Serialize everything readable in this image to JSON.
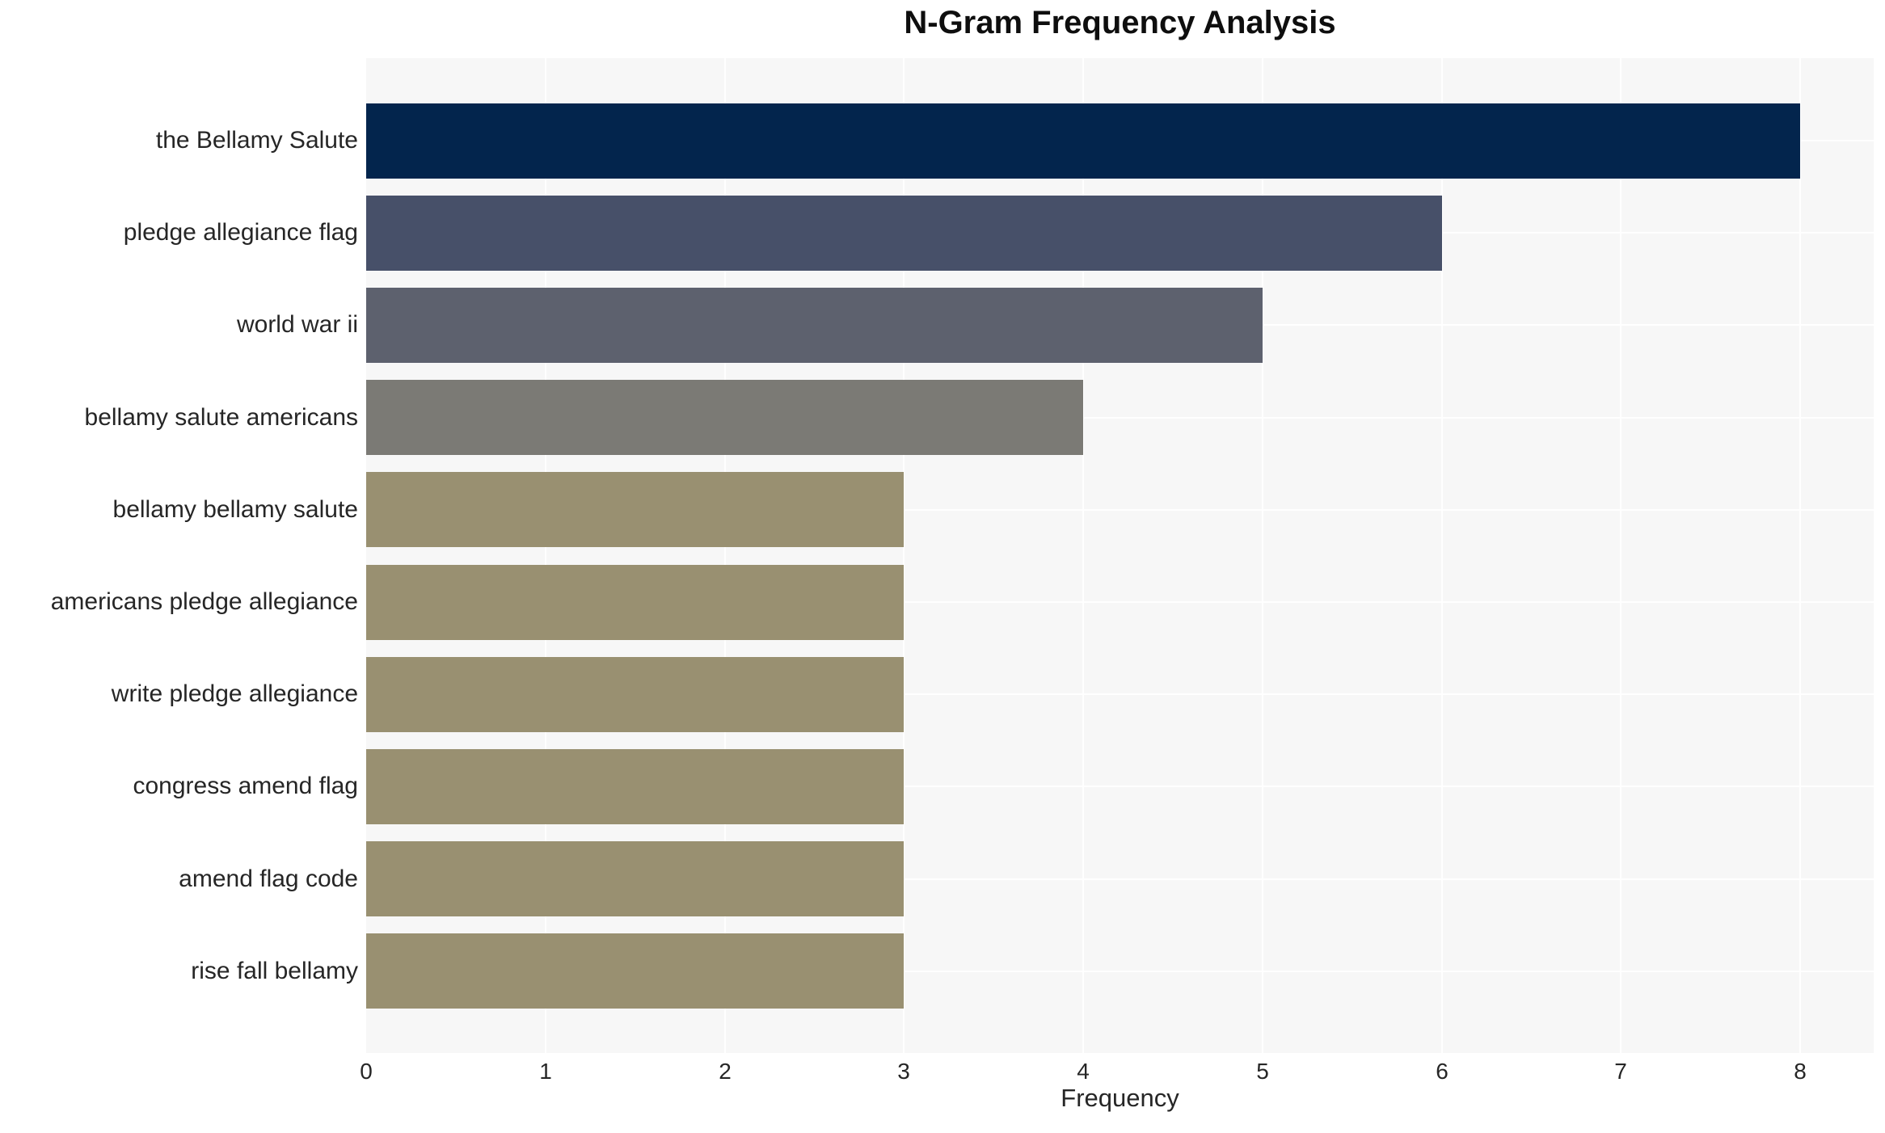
{
  "chart_data": {
    "type": "bar",
    "orientation": "horizontal",
    "title": "N-Gram Frequency Analysis",
    "xlabel": "Frequency",
    "ylabel": "",
    "categories": [
      "the Bellamy Salute",
      "pledge allegiance flag",
      "world war ii",
      "bellamy salute americans",
      "bellamy bellamy salute",
      "americans pledge allegiance",
      "write pledge allegiance",
      "congress amend flag",
      "amend flag code",
      "rise fall bellamy"
    ],
    "values": [
      8,
      6,
      5,
      4,
      3,
      3,
      3,
      3,
      3,
      3
    ],
    "bar_colors": [
      "#03254d",
      "#475069",
      "#5d616e",
      "#7b7a75",
      "#999071",
      "#999071",
      "#999071",
      "#999071",
      "#999071",
      "#999071"
    ],
    "x_ticks": [
      0,
      1,
      2,
      3,
      4,
      5,
      6,
      7,
      8
    ],
    "xlim": [
      0,
      8.41
    ],
    "grid": true,
    "legend": false,
    "plot_bg_color": "#f7f7f7",
    "grid_color": "#ffffff",
    "text_color": "#262626",
    "title_color": "#0e0e0e"
  }
}
